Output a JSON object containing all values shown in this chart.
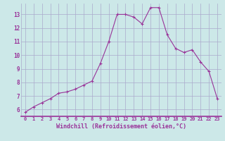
{
  "x": [
    0,
    1,
    2,
    3,
    4,
    5,
    6,
    7,
    8,
    9,
    10,
    11,
    12,
    13,
    14,
    15,
    16,
    17,
    18,
    19,
    20,
    21,
    22,
    23
  ],
  "y": [
    5.8,
    6.2,
    6.5,
    6.8,
    7.2,
    7.3,
    7.5,
    7.8,
    8.1,
    9.4,
    11.0,
    13.0,
    13.0,
    12.8,
    12.3,
    13.5,
    13.5,
    11.5,
    10.5,
    10.2,
    10.4,
    9.5,
    8.8,
    6.8
  ],
  "line_color": "#993399",
  "marker": "+",
  "marker_color": "#993399",
  "bg_color": "#cce8e8",
  "grid_color": "#aaaacc",
  "xlabel": "Windchill (Refroidissement éolien,°C)",
  "xlabel_color": "#993399",
  "tick_color": "#993399",
  "ylim": [
    5.5,
    13.8
  ],
  "yticks": [
    6,
    7,
    8,
    9,
    10,
    11,
    12,
    13
  ],
  "xlim": [
    -0.5,
    23.5
  ],
  "xticks": [
    0,
    1,
    2,
    3,
    4,
    5,
    6,
    7,
    8,
    9,
    10,
    11,
    12,
    13,
    14,
    15,
    16,
    17,
    18,
    19,
    20,
    21,
    22,
    23
  ]
}
